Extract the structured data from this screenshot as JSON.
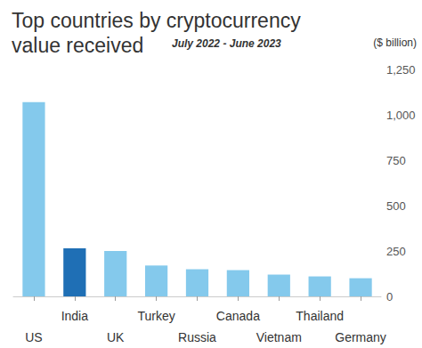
{
  "chart_data": {
    "type": "bar",
    "title": "Top countries by cryptocurrency value received",
    "subtitle": "July 2022 - June 2023",
    "y_label": "($ billion)",
    "categories": [
      "US",
      "India",
      "UK",
      "Turkey",
      "Russia",
      "Canada",
      "Vietnam",
      "Thailand",
      "Germany"
    ],
    "values": [
      1070,
      265,
      250,
      170,
      150,
      145,
      120,
      110,
      100
    ],
    "colors": [
      "#84c9ec",
      "#1f6fb5",
      "#84c9ec",
      "#84c9ec",
      "#84c9ec",
      "#84c9ec",
      "#84c9ec",
      "#84c9ec",
      "#84c9ec"
    ],
    "ylim": [
      0,
      1250
    ],
    "yticks": [
      0,
      250,
      500,
      750,
      1000,
      1250
    ],
    "grid": false
  }
}
